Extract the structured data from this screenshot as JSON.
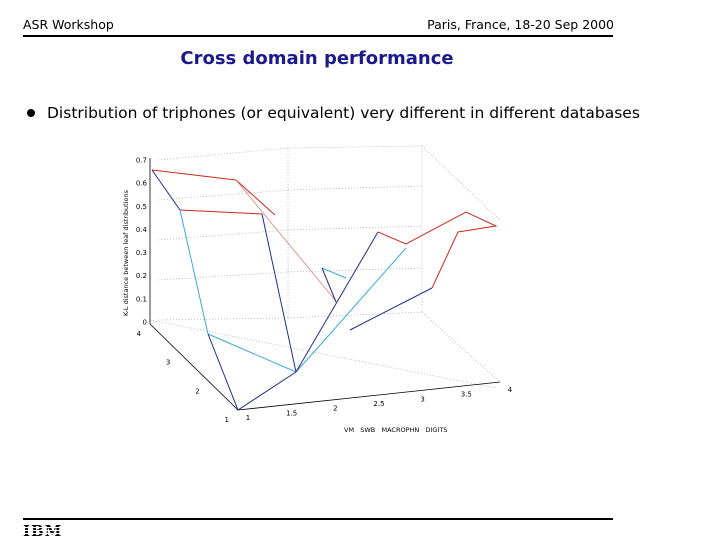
{
  "header": {
    "left": "ASR Workshop",
    "right": "Paris, France, 18-20 Sep 2000"
  },
  "slide": {
    "title": "Cross domain performance",
    "bullets": [
      "Distribution of triphones (or equivalent) very different in different databases"
    ]
  },
  "footer": {
    "logo": "IBM"
  },
  "chart_data": {
    "type": "3d-line",
    "zlabel": "K-L distance between leaf distributions",
    "xlabel": "VM   SWB   MACROPHN   DIGITS",
    "z_ticks": [
      "0",
      "0.1",
      "0.2",
      "0.3",
      "0.4",
      "0.5",
      "0.6",
      "0.7"
    ],
    "x_ticks": [
      "1",
      "1.5",
      "2",
      "2.5",
      "3",
      "3.5",
      "4"
    ],
    "y_ticks": [
      "1",
      "2",
      "3",
      "4"
    ],
    "xlim": [
      1,
      4
    ],
    "ylim": [
      1,
      4
    ],
    "zlim": [
      0,
      0.7
    ],
    "colors": {
      "red": "#cc2a1f",
      "cyan": "#3aaad8",
      "blue": "#1f2f8a"
    }
  }
}
